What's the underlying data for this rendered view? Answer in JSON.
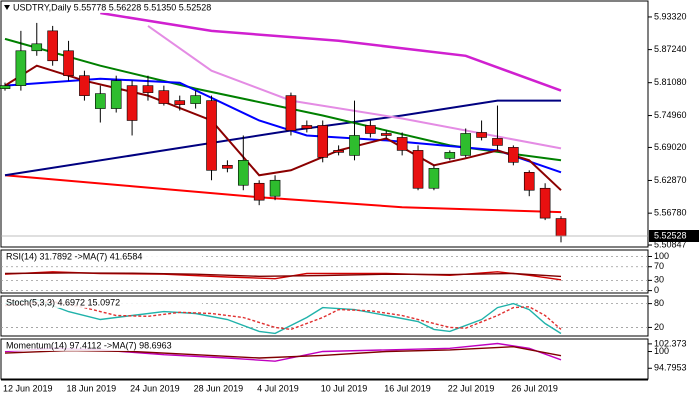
{
  "chart_data": [
    {
      "type": "candlestick",
      "title": "USDTRY,Daily  5.55778 5.56228 5.51350 5.52528",
      "categories": [
        "12 Jun 2019",
        null,
        null,
        null,
        "18 Jun 2019",
        null,
        null,
        null,
        "24 Jun 2019",
        null,
        null,
        null,
        "28 Jun 2019",
        null,
        null,
        null,
        "4 Jul 2019",
        null,
        null,
        null,
        "10 Jul 2019",
        null,
        null,
        null,
        "16 Jul 2019",
        null,
        null,
        null,
        "22 Jul 2019",
        null,
        null,
        null,
        "26 Jul 2019",
        null,
        null,
        null
      ],
      "open": [
        5.7997,
        5.8053,
        5.8702,
        5.9073,
        5.8702,
        5.8238,
        5.7626,
        5.7626,
        5.8053,
        5.8053,
        5.796,
        5.7774,
        5.7719,
        5.7774,
        5.6569,
        5.6198,
        5.6235,
        5.5994,
        5.7867,
        5.7311,
        5.7311,
        5.6847,
        5.6754,
        5.7311,
        5.7162,
        5.7088,
        5.6847,
        5.6142,
        5.6699,
        5.6754,
        5.7181,
        5.707,
        5.6903,
        5.6439,
        5.6142,
        5.55778
      ],
      "high": [
        5.8108,
        5.9073,
        5.9221,
        5.9165,
        5.8887,
        5.8331,
        5.8053,
        5.8238,
        5.8145,
        5.8238,
        5.8053,
        5.7867,
        5.796,
        5.7867,
        5.6662,
        5.7125,
        5.6291,
        5.6383,
        5.7923,
        5.7404,
        5.7404,
        5.694,
        5.7774,
        5.7404,
        5.7218,
        5.7181,
        5.694,
        5.6569,
        5.6847,
        5.7255,
        5.7404,
        5.7682,
        5.694,
        5.6476,
        5.6235,
        5.56228
      ],
      "low": [
        5.796,
        5.796,
        5.8609,
        5.8424,
        5.8145,
        5.7774,
        5.7366,
        5.7552,
        5.7125,
        5.7774,
        5.7682,
        5.7589,
        5.7626,
        5.6291,
        5.6439,
        5.6105,
        5.5827,
        5.592,
        5.7125,
        5.7181,
        5.6625,
        5.6754,
        5.6662,
        5.7088,
        5.707,
        5.6754,
        5.6105,
        5.6105,
        5.6662,
        5.6717,
        5.7033,
        5.6847,
        5.6569,
        5.5994,
        5.5549,
        5.5135
      ],
      "close": [
        5.8053,
        5.8702,
        5.8832,
        5.8516,
        5.8238,
        5.7867,
        5.7904,
        5.8145,
        5.7404,
        5.7923,
        5.7719,
        5.77,
        5.7867,
        5.6476,
        5.6513,
        5.6662,
        5.592,
        5.6291,
        5.7218,
        5.7255,
        5.6717,
        5.681,
        5.7125,
        5.7162,
        5.7125,
        5.6847,
        5.6142,
        5.6513,
        5.681,
        5.7162,
        5.7088,
        5.694,
        5.6625,
        5.6105,
        5.5586,
        5.52528
      ],
      "up_color": "#2ebd2e",
      "down_color": "#e81010",
      "lines": [
        {
          "color": "#ff0000",
          "x": [
            0,
            8,
            16,
            25,
            35
          ],
          "values": [
            5.6383,
            5.618,
            5.5976,
            5.579,
            5.5697
          ]
        },
        {
          "color": "#000080",
          "x": [
            0,
            10,
            18,
            25,
            31,
            35
          ],
          "values": [
            5.6383,
            5.6847,
            5.7218,
            5.7496,
            5.7774,
            5.7774
          ]
        },
        {
          "color": "#d020d0",
          "x": [
            6,
            13,
            21,
            29,
            35
          ],
          "values": [
            5.9406,
            5.9073,
            5.8887,
            5.8609,
            5.796
          ]
        },
        {
          "color": "#e48ce4",
          "x": [
            9,
            13,
            18,
            25,
            35
          ],
          "values": [
            5.9165,
            5.8331,
            5.7774,
            5.7441,
            5.6884
          ]
        },
        {
          "color": "#008000",
          "x": [
            0,
            6,
            12,
            20,
            28,
            35
          ],
          "values": [
            5.8924,
            5.8424,
            5.7997,
            5.7496,
            5.694,
            5.6662
          ]
        },
        {
          "color": "#0000ff",
          "x": [
            0,
            6,
            11,
            16,
            19,
            24,
            31,
            35
          ],
          "values": [
            5.8053,
            5.8182,
            5.8108,
            5.7404,
            5.7125,
            5.7033,
            5.6847,
            5.6439
          ]
        },
        {
          "color": "#8b0000",
          "x": [
            0,
            2,
            5,
            9,
            13,
            16,
            18,
            21,
            24,
            27,
            29,
            31,
            33,
            35
          ],
          "values": [
            5.8053,
            5.8424,
            5.8145,
            5.7867,
            5.7404,
            5.6383,
            5.6476,
            5.6847,
            5.707,
            5.6569,
            5.6699,
            5.6847,
            5.6662,
            5.6105
          ]
        }
      ],
      "ylim": [
        5.5048,
        5.9629
      ],
      "yticks": [
        {
          "value": 5.9332,
          "label": "5.93320"
        },
        {
          "value": 5.8724,
          "label": "5.87240"
        },
        {
          "value": 5.8108,
          "label": "5.81080"
        },
        {
          "value": 5.7496,
          "label": "5.74960"
        },
        {
          "value": 5.6902,
          "label": "5.69020"
        },
        {
          "value": 5.6287,
          "label": "5.62870"
        },
        {
          "value": 5.5678,
          "label": "5.56780"
        },
        5.50847
      ],
      "last_price": 5.52528
    },
    {
      "type": "line",
      "title": "RSI(14) 31.7892  ->MA(7) 41.6584",
      "ylim": [
        -7,
        119
      ],
      "yticks": [
        100,
        70,
        30,
        0
      ],
      "grid": true,
      "series": [
        {
          "color": "#d00000",
          "x": [
            0,
            3,
            6,
            10,
            14,
            17,
            19,
            24,
            28,
            31,
            33,
            35
          ],
          "values": [
            48,
            55,
            50,
            48,
            40,
            35,
            50,
            50,
            45,
            55,
            45,
            31.7892
          ]
        },
        {
          "color": "#800000",
          "x": [
            0,
            4,
            8,
            12,
            16,
            20,
            24,
            28,
            32,
            35
          ],
          "values": [
            50,
            52,
            51,
            48,
            42,
            44,
            48,
            47,
            50,
            41.6584
          ]
        }
      ]
    },
    {
      "type": "line",
      "title": "Stoch(5,3,3) 4.6972 15.0972",
      "ylim": [
        -1.6,
        99.2
      ],
      "yticks": [
        80,
        20
      ],
      "grid": true,
      "series": [
        {
          "color": "#20b2aa",
          "x": [
            0,
            2,
            4,
            6,
            8,
            10,
            12,
            14,
            16,
            17,
            19,
            20,
            22,
            24,
            26,
            27,
            28,
            30,
            31,
            32,
            33,
            34,
            35
          ],
          "values": [
            80,
            90,
            60,
            40,
            50,
            60,
            55,
            40,
            10,
            5,
            45,
            70,
            65,
            50,
            35,
            15,
            10,
            40,
            70,
            80,
            65,
            30,
            4.6972
          ]
        },
        {
          "color": "#e03030",
          "dashed": true,
          "x": [
            0,
            3,
            5,
            7,
            9,
            11,
            13,
            15,
            17,
            18,
            20,
            21,
            23,
            25,
            27,
            28,
            29,
            31,
            32,
            33,
            34,
            35
          ],
          "values": [
            75,
            85,
            70,
            50,
            48,
            58,
            55,
            45,
            20,
            15,
            45,
            65,
            62,
            50,
            30,
            20,
            18,
            50,
            70,
            72,
            50,
            15.0972
          ]
        }
      ]
    },
    {
      "type": "line",
      "title": "Momentum(14) 97.4112  ->MA(7) 98.6963",
      "ylim": [
        91.46,
        103.89
      ],
      "yticks": [
        102.373,
        100,
        94.7953
      ],
      "grid": false,
      "series": [
        {
          "color": "#c000c0",
          "x": [
            0,
            3,
            6,
            10,
            14,
            17,
            20,
            24,
            28,
            31,
            33,
            35
          ],
          "values": [
            100,
            101,
            100.5,
            99,
            98,
            97,
            100,
            100.5,
            101,
            102.5,
            101,
            97.4112
          ]
        },
        {
          "color": "#800000",
          "x": [
            0,
            4,
            8,
            12,
            16,
            20,
            24,
            28,
            32,
            35
          ],
          "values": [
            99.5,
            100.3,
            100,
            99,
            98,
            98.8,
            100,
            100.5,
            101.5,
            98.6963
          ]
        }
      ]
    }
  ]
}
